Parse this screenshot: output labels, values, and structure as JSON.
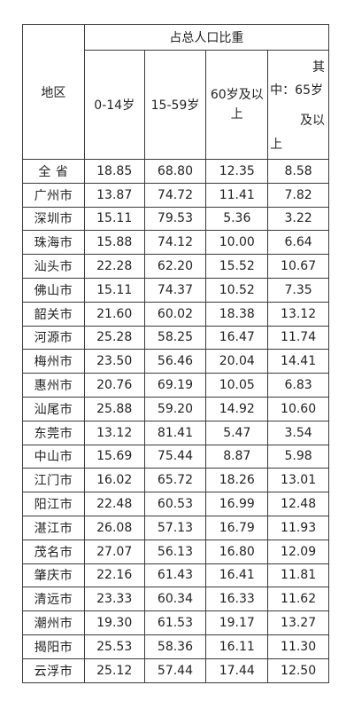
{
  "table": {
    "header_region": "地区",
    "header_group": "占总人口比重",
    "header_0_14": "0-14岁",
    "header_15_59": "15-59岁",
    "header_60": "60岁及以上",
    "header_65_l1": "其",
    "header_65_l2": "中：65岁",
    "header_65_l3": "及以",
    "header_65_l4": "上",
    "rows": [
      {
        "region": "全 省",
        "a": "18.85",
        "b": "68.80",
        "c": "12.35",
        "d": "8.58"
      },
      {
        "region": "广州市",
        "a": "13.87",
        "b": "74.72",
        "c": "11.41",
        "d": "7.82"
      },
      {
        "region": "深圳市",
        "a": "15.11",
        "b": "79.53",
        "c": "5.36",
        "d": "3.22"
      },
      {
        "region": "珠海市",
        "a": "15.88",
        "b": "74.12",
        "c": "10.00",
        "d": "6.64"
      },
      {
        "region": "汕头市",
        "a": "22.28",
        "b": "62.20",
        "c": "15.52",
        "d": "10.67"
      },
      {
        "region": "佛山市",
        "a": "15.11",
        "b": "74.37",
        "c": "10.52",
        "d": "7.35"
      },
      {
        "region": "韶关市",
        "a": "21.60",
        "b": "60.02",
        "c": "18.38",
        "d": "13.12"
      },
      {
        "region": "河源市",
        "a": "25.28",
        "b": "58.25",
        "c": "16.47",
        "d": "11.74"
      },
      {
        "region": "梅州市",
        "a": "23.50",
        "b": "56.46",
        "c": "20.04",
        "d": "14.41"
      },
      {
        "region": "惠州市",
        "a": "20.76",
        "b": "69.19",
        "c": "10.05",
        "d": "6.83"
      },
      {
        "region": "汕尾市",
        "a": "25.88",
        "b": "59.20",
        "c": "14.92",
        "d": "10.60"
      },
      {
        "region": "东莞市",
        "a": "13.12",
        "b": "81.41",
        "c": "5.47",
        "d": "3.54"
      },
      {
        "region": "中山市",
        "a": "15.69",
        "b": "75.44",
        "c": "8.87",
        "d": "5.98"
      },
      {
        "region": "江门市",
        "a": "16.02",
        "b": "65.72",
        "c": "18.26",
        "d": "13.01"
      },
      {
        "region": "阳江市",
        "a": "22.48",
        "b": "60.53",
        "c": "16.99",
        "d": "12.48"
      },
      {
        "region": "湛江市",
        "a": "26.08",
        "b": "57.13",
        "c": "16.79",
        "d": "11.93"
      },
      {
        "region": "茂名市",
        "a": "27.07",
        "b": "56.13",
        "c": "16.80",
        "d": "12.09"
      },
      {
        "region": "肇庆市",
        "a": "22.16",
        "b": "61.43",
        "c": "16.41",
        "d": "11.81"
      },
      {
        "region": "清远市",
        "a": "23.33",
        "b": "60.34",
        "c": "16.33",
        "d": "11.62"
      },
      {
        "region": "潮州市",
        "a": "19.30",
        "b": "61.53",
        "c": "19.17",
        "d": "13.27"
      },
      {
        "region": "揭阳市",
        "a": "25.53",
        "b": "58.36",
        "c": "16.11",
        "d": "11.30"
      },
      {
        "region": "云浮市",
        "a": "25.12",
        "b": "57.44",
        "c": "17.44",
        "d": "12.50"
      }
    ]
  }
}
